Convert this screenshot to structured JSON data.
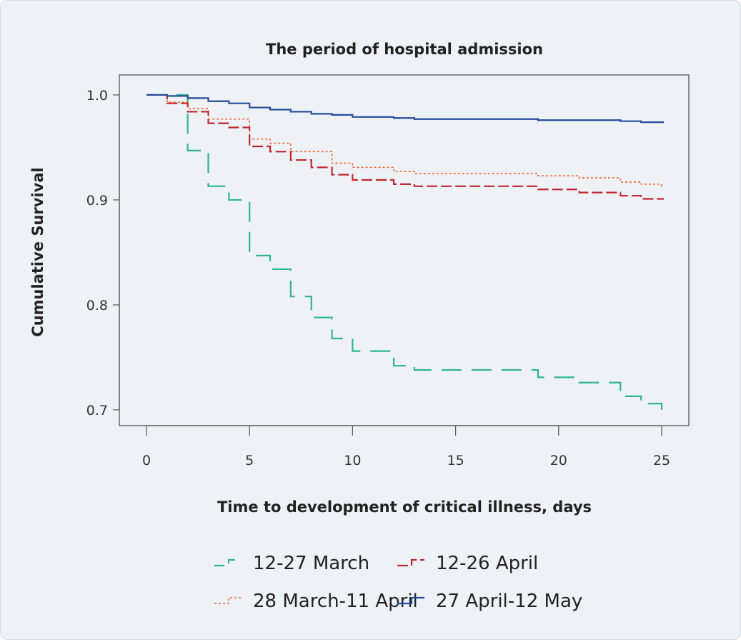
{
  "chart_data": {
    "type": "line",
    "step": true,
    "title": "The period of hospital admission",
    "xlabel": "Time to development of critical illness, days",
    "ylabel": "Cumulative Survival",
    "xlim": [
      0,
      26
    ],
    "ylim": [
      0.685,
      1.019
    ],
    "x_ticks": [
      0,
      5,
      10,
      15,
      20,
      25
    ],
    "y_ticks": [
      0.7,
      0.8,
      0.9,
      1.0
    ],
    "x_tick_labels": [
      "0",
      "5",
      "10",
      "15",
      "20",
      "25"
    ],
    "y_tick_labels": [
      "0.7",
      "0.8",
      "0.9",
      "1.0"
    ],
    "grid": false,
    "legend_position": "bottom",
    "series": [
      {
        "name": "12-27 March",
        "color": "#2db68c",
        "style": "long-dash",
        "x": [
          0,
          2,
          3,
          4,
          5,
          6,
          7,
          8,
          9,
          10,
          11,
          12,
          13,
          19,
          21,
          23,
          24,
          25
        ],
        "y": [
          1.0,
          0.947,
          0.913,
          0.9,
          0.847,
          0.834,
          0.808,
          0.788,
          0.768,
          0.756,
          0.756,
          0.742,
          0.738,
          0.731,
          0.726,
          0.713,
          0.706,
          0.699
        ]
      },
      {
        "name": "28 March-11 April",
        "color": "#f0642a",
        "style": "dotted",
        "x": [
          0,
          1,
          2,
          3,
          5,
          6,
          7,
          9,
          10,
          12,
          13,
          19,
          21,
          23,
          24,
          25
        ],
        "y": [
          1.0,
          0.993,
          0.987,
          0.977,
          0.958,
          0.954,
          0.946,
          0.935,
          0.931,
          0.927,
          0.925,
          0.923,
          0.921,
          0.917,
          0.915,
          0.913
        ]
      },
      {
        "name": "12-26 April",
        "color": "#c1272d",
        "style": "dash",
        "x": [
          0,
          1,
          2,
          3,
          4,
          5,
          6,
          7,
          8,
          9,
          10,
          12,
          13,
          19,
          21,
          23,
          24,
          25
        ],
        "y": [
          1.0,
          0.992,
          0.984,
          0.973,
          0.969,
          0.951,
          0.946,
          0.938,
          0.931,
          0.924,
          0.919,
          0.915,
          0.913,
          0.91,
          0.907,
          0.904,
          0.901,
          0.901
        ]
      },
      {
        "name": "27 April-12 May",
        "color": "#234c9a",
        "style": "solid",
        "x": [
          0,
          1,
          2,
          3,
          4,
          5,
          6,
          7,
          8,
          9,
          10,
          12,
          13,
          19,
          21,
          23,
          24,
          25
        ],
        "y": [
          1.0,
          0.999,
          0.997,
          0.994,
          0.992,
          0.988,
          0.986,
          0.984,
          0.982,
          0.981,
          0.979,
          0.978,
          0.977,
          0.976,
          0.976,
          0.975,
          0.974,
          0.974
        ]
      }
    ]
  }
}
